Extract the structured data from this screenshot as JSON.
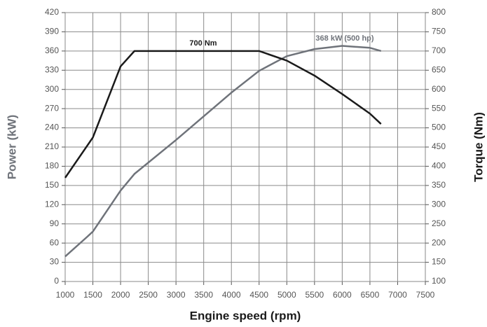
{
  "chart_data": {
    "type": "line",
    "x_label": "Engine speed (rpm)",
    "y_label": "Power (kW)",
    "y2_label": "Torque (Nm)",
    "annotations": [
      "700 Nm",
      "368 kW (500 hp)"
    ],
    "xlim": [
      1000,
      7500
    ],
    "xticks": [
      1000,
      1500,
      2000,
      2500,
      3000,
      3500,
      4000,
      4500,
      5000,
      5500,
      6000,
      6500,
      7000,
      7500
    ],
    "ylim": [
      0,
      420
    ],
    "yticks": [
      0,
      30,
      60,
      90,
      120,
      150,
      180,
      210,
      240,
      270,
      300,
      330,
      360,
      390,
      420
    ],
    "y2lim": [
      100,
      800
    ],
    "y2ticks": [
      100,
      150,
      200,
      250,
      300,
      350,
      400,
      450,
      500,
      550,
      600,
      650,
      700,
      750,
      800
    ],
    "grid": true,
    "series": [
      {
        "name": "Power",
        "color": "#6f737a",
        "x": [
          1000,
          1400,
          1500,
          2000,
          2250,
          3000,
          4000,
          4500,
          5000,
          5500,
          6000,
          6500,
          6700
        ],
        "values": [
          39,
          70,
          78,
          142,
          168,
          221,
          295,
          329,
          352,
          363,
          368,
          365,
          360
        ]
      },
      {
        "name": "Torque",
        "color": "#1a1a1a",
        "axis": "y2",
        "x": [
          1000,
          1500,
          2000,
          2250,
          4500,
          5000,
          5500,
          6000,
          6500,
          6700
        ],
        "values": [
          370,
          475,
          660,
          700,
          700,
          675,
          636,
          588,
          537,
          510
        ]
      }
    ]
  }
}
